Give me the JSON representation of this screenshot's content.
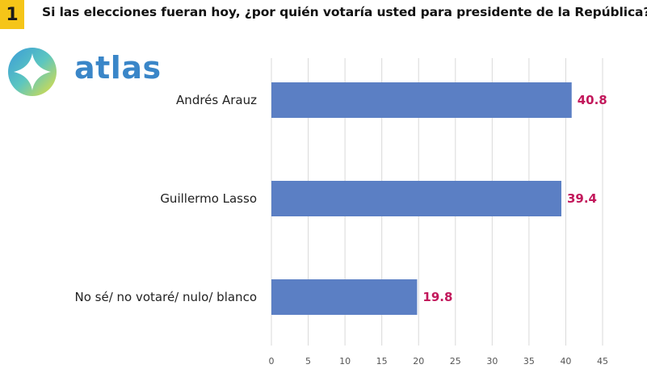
{
  "header": {
    "question_number": "1",
    "title": "Si las elecciones fueran hoy, ¿por quién votaría usted para presidente de la República?"
  },
  "logo": {
    "text": "atlas",
    "icon": "atlas-logo-icon"
  },
  "colors": {
    "bar": "#5b7fc4",
    "value_label": "#c2185b",
    "badge": "#f5c518",
    "logo": "#3a86c8"
  },
  "chart_data": {
    "type": "bar",
    "orientation": "horizontal",
    "title": "Si las elecciones fueran hoy, ¿por quién votaría usted para presidente de la República?",
    "categories": [
      "Andrés Arauz",
      "Guillermo Lasso",
      "No sé/ no votaré/ nulo/ blanco"
    ],
    "values": [
      40.8,
      39.4,
      19.8
    ],
    "value_labels": [
      "40.8",
      "39.4",
      "19.8"
    ],
    "xlim": [
      0,
      45
    ],
    "x_ticks": [
      0,
      5,
      10,
      15,
      20,
      25,
      30,
      35,
      40,
      45
    ],
    "grid": true,
    "xlabel": "",
    "ylabel": ""
  }
}
